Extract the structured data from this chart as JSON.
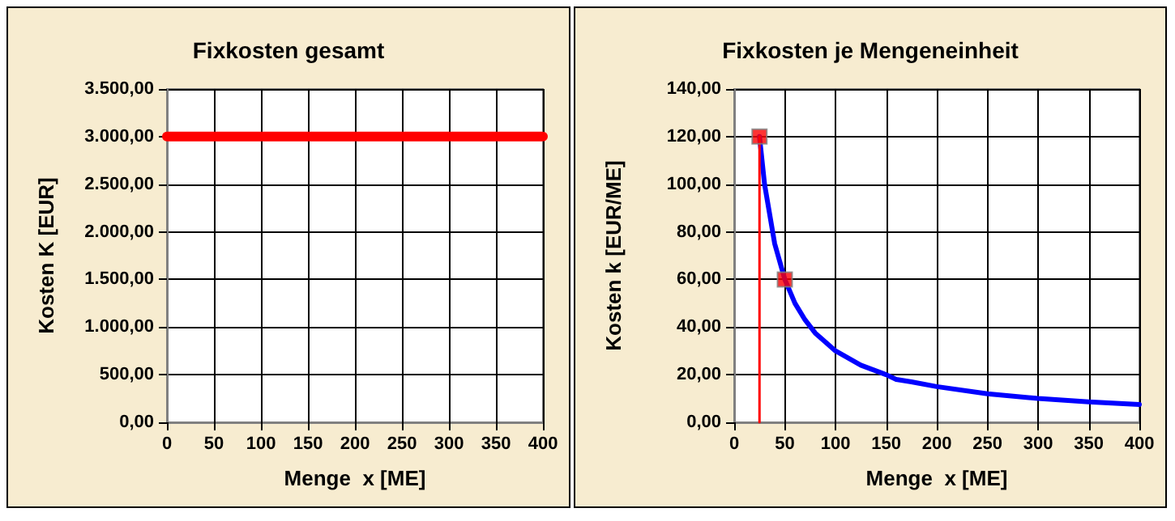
{
  "chart_data": [
    {
      "type": "line",
      "title": "Fixkosten gesamt",
      "xlabel": "Menge  x [ME]",
      "ylabel": "Kosten K [EUR]",
      "xlim": [
        0,
        400
      ],
      "ylim": [
        0,
        3500
      ],
      "xticks": [
        0,
        50,
        100,
        150,
        200,
        250,
        300,
        350,
        400
      ],
      "yticks": [
        {
          "value": 0,
          "label": "0,00"
        },
        {
          "value": 500,
          "label": "500,00"
        },
        {
          "value": 1000,
          "label": "1.000,00"
        },
        {
          "value": 1500,
          "label": "1.500,00"
        },
        {
          "value": 2000,
          "label": "2.000,00"
        },
        {
          "value": 2500,
          "label": "2.500,00"
        },
        {
          "value": 3000,
          "label": "3.000,00"
        },
        {
          "value": 3500,
          "label": "3.500,00"
        }
      ],
      "grid": true,
      "marker": "none",
      "line_style": "solid",
      "series": [
        {
          "color": "#ff0000",
          "x": [
            0,
            400
          ],
          "values": [
            3000,
            3000
          ]
        }
      ]
    },
    {
      "type": "line",
      "title": "Fixkosten je Mengeneinheit",
      "xlabel": "Menge  x [ME]",
      "ylabel": "Kosten k [EUR/ME]",
      "xlim": [
        0,
        400
      ],
      "ylim": [
        0,
        140
      ],
      "xticks": [
        0,
        50,
        100,
        150,
        200,
        250,
        300,
        350,
        400
      ],
      "yticks": [
        {
          "value": 0,
          "label": "0,00"
        },
        {
          "value": 20,
          "label": "20,00"
        },
        {
          "value": 40,
          "label": "40,00"
        },
        {
          "value": 60,
          "label": "60,00"
        },
        {
          "value": 80,
          "label": "80,00"
        },
        {
          "value": 100,
          "label": "100,00"
        },
        {
          "value": 120,
          "label": "120,00"
        },
        {
          "value": 140,
          "label": "140,00"
        }
      ],
      "grid": true,
      "marker": "none",
      "line_style": "solid",
      "series": [
        {
          "color": "#0000ff",
          "x": [
            25,
            30,
            40,
            50,
            60,
            70,
            80,
            100,
            125,
            150,
            160,
            175,
            200,
            250,
            300,
            350,
            400
          ],
          "values": [
            120,
            100,
            75,
            60,
            50,
            43,
            37.5,
            30,
            24,
            20,
            18,
            17,
            15,
            12,
            10,
            8.6,
            7.5
          ]
        },
        {
          "color": "#ff0000",
          "x": [
            25,
            25
          ],
          "values": [
            0,
            120
          ]
        },
        {
          "type": "scatter",
          "marker": "square",
          "color": "#ff0000",
          "x": [
            25,
            50
          ],
          "values": [
            120,
            60
          ]
        }
      ]
    }
  ]
}
